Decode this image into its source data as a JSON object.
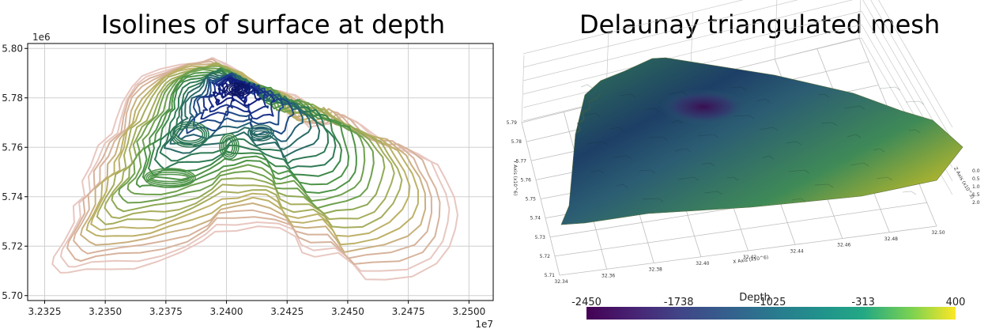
{
  "chart_data": [
    {
      "type": "contour",
      "title": "Isolines of surface at depth",
      "x_tick_labels": [
        "3.2325",
        "3.2350",
        "3.2375",
        "3.2400",
        "3.2425",
        "3.2450",
        "3.2475",
        "3.2500"
      ],
      "y_tick_labels": [
        "5.70",
        "5.72",
        "5.74",
        "5.76",
        "5.78",
        "5.80"
      ],
      "x_ticks": [
        3.2325,
        3.235,
        3.2375,
        3.24,
        3.2425,
        3.245,
        3.2475,
        3.25
      ],
      "y_ticks": [
        5.7,
        5.72,
        5.74,
        5.76,
        5.78,
        5.8
      ],
      "x_offset_label": "1e7",
      "y_offset_label": "1e6",
      "xlim": [
        3.2318,
        3.251
      ],
      "ylim": [
        5.698,
        5.802
      ],
      "grid": true,
      "colormap": "gist_earth (deep blue to green to tan)"
    },
    {
      "type": "surface",
      "title": "Delaunay triangulated mesh",
      "colorbar_label": "Depth",
      "colorbar_tick_labels": [
        "-2450",
        "-1738",
        "-1025",
        "-313",
        "400"
      ],
      "colorbar_ticks": [
        -2450,
        -1738,
        -1025,
        -313,
        400
      ],
      "colorbar_range": [
        -2450,
        400
      ],
      "x_axis_label": "X Axis (x10^6)",
      "x_tick_labels": [
        "32.34",
        "32.36",
        "32.38",
        "32.40",
        "32.42",
        "32.44",
        "32.46",
        "32.48",
        "32.50"
      ],
      "y_axis_label": "Y Axis (x10^6)",
      "y_tick_labels": [
        "5.79",
        "5.78",
        "5.77",
        "5.76",
        "5.75",
        "5.74",
        "5.73",
        "5.72",
        "5.71"
      ],
      "z_axis_label": "Z Axis (x10^3)",
      "z_tick_labels": [
        "0.0",
        "0.5",
        "1.0",
        "1.5",
        "2.0"
      ],
      "colormap": "viridis"
    }
  ]
}
